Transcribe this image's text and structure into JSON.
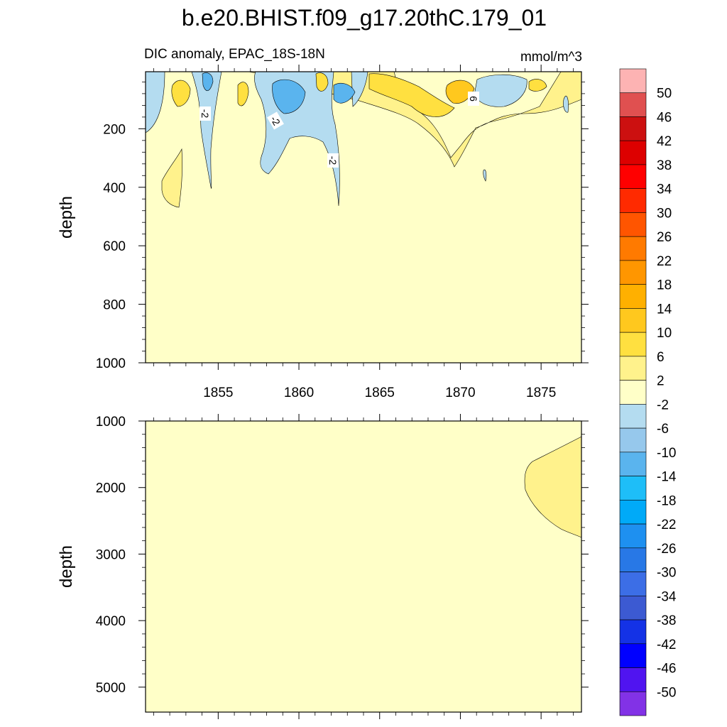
{
  "chart_data": {
    "type": "heatmap",
    "title": "b.e20.BHIST.f09_g17.20thC.179_01",
    "subtitle_left": "DIC anomaly, EPAC_18S-18N",
    "subtitle_right": "mmol/m^3",
    "colorbar_levels": [
      "50",
      "46",
      "42",
      "38",
      "34",
      "30",
      "26",
      "22",
      "18",
      "14",
      "10",
      "6",
      "2",
      "-2",
      "-6",
      "-10",
      "-14",
      "-18",
      "-22",
      "-26",
      "-30",
      "-34",
      "-38",
      "-42",
      "-46",
      "-50"
    ],
    "colorbar_colors": [
      "#fdb3b3",
      "#e05050",
      "#cc1010",
      "#dd0000",
      "#ff0000",
      "#ff2a00",
      "#ff5500",
      "#ff7a00",
      "#ff9600",
      "#ffb000",
      "#ffc81e",
      "#ffe040",
      "#fff28c",
      "#ffffc8",
      "#b4dcf0",
      "#96c8ec",
      "#5ab4ee",
      "#1ebef8",
      "#00aaf8",
      "#1e90f0",
      "#2878e6",
      "#3c6ee6",
      "#3c5ad2",
      "#1432e6",
      "#0000ff",
      "#5014f0",
      "#8232e6"
    ],
    "panels": [
      {
        "ylabel": "depth",
        "yticks": [
          "200",
          "400",
          "600",
          "800",
          "1000"
        ],
        "ytick_values": [
          200,
          400,
          600,
          800,
          1000
        ],
        "ylim": [
          5,
          1000
        ],
        "xticks": [
          "1855",
          "1860",
          "1865",
          "1870",
          "1875"
        ],
        "xtick_values": [
          1855,
          1860,
          1865,
          1870,
          1875
        ],
        "xlim": [
          1850.5,
          1877.5
        ],
        "contour_labels": [
          "-2",
          "-2",
          "-2",
          "6"
        ]
      },
      {
        "ylabel": "depth",
        "yticks": [
          "1000",
          "2000",
          "3000",
          "4000",
          "5000"
        ],
        "ytick_values": [
          1000,
          2000,
          3000,
          4000,
          5000
        ],
        "ylim": [
          1000,
          5375
        ],
        "xlim": [
          1850.5,
          1877.5
        ]
      }
    ]
  }
}
